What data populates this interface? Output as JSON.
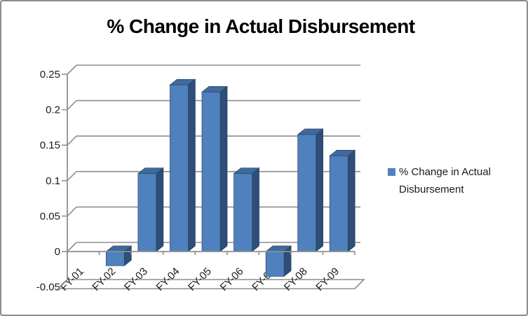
{
  "window": {
    "background": "#FFFFFF",
    "frame_border_color": "#8C8C8C"
  },
  "chart_data": {
    "type": "bar",
    "style": "3d-clustered-column",
    "title": "% Change in Actual Disbursement",
    "categories": [
      "FY-01",
      "FY-02",
      "FY-03",
      "FY-04",
      "FY-05",
      "FY-06",
      "FY-07",
      "FY-08",
      "FY-09"
    ],
    "series": [
      {
        "name": "% Change in Actual Disbursement",
        "values": [
          0,
          -0.02,
          0.11,
          0.235,
          0.225,
          0.11,
          -0.035,
          0.165,
          0.135
        ]
      }
    ],
    "xlabel": "",
    "ylabel": "",
    "ylim": [
      -0.05,
      0.25
    ],
    "ytick_step": 0.05,
    "ytick_labels": [
      "0.25",
      "0.2",
      "0.15",
      "0.1",
      "0.05",
      "0",
      "-0.05"
    ],
    "grid": true,
    "legend": {
      "position": "right",
      "label": "% Change in Actual Disbursement",
      "marker_color": "#4F81BD"
    },
    "colors": {
      "bar_front": "#4F81BD",
      "bar_top": "#41699E",
      "bar_side": "#2E4E77",
      "bar_outline": "#274569",
      "axis_line": "#8E8E8E",
      "tick_text": "#1A1A1A",
      "title_text": "#000000"
    }
  }
}
